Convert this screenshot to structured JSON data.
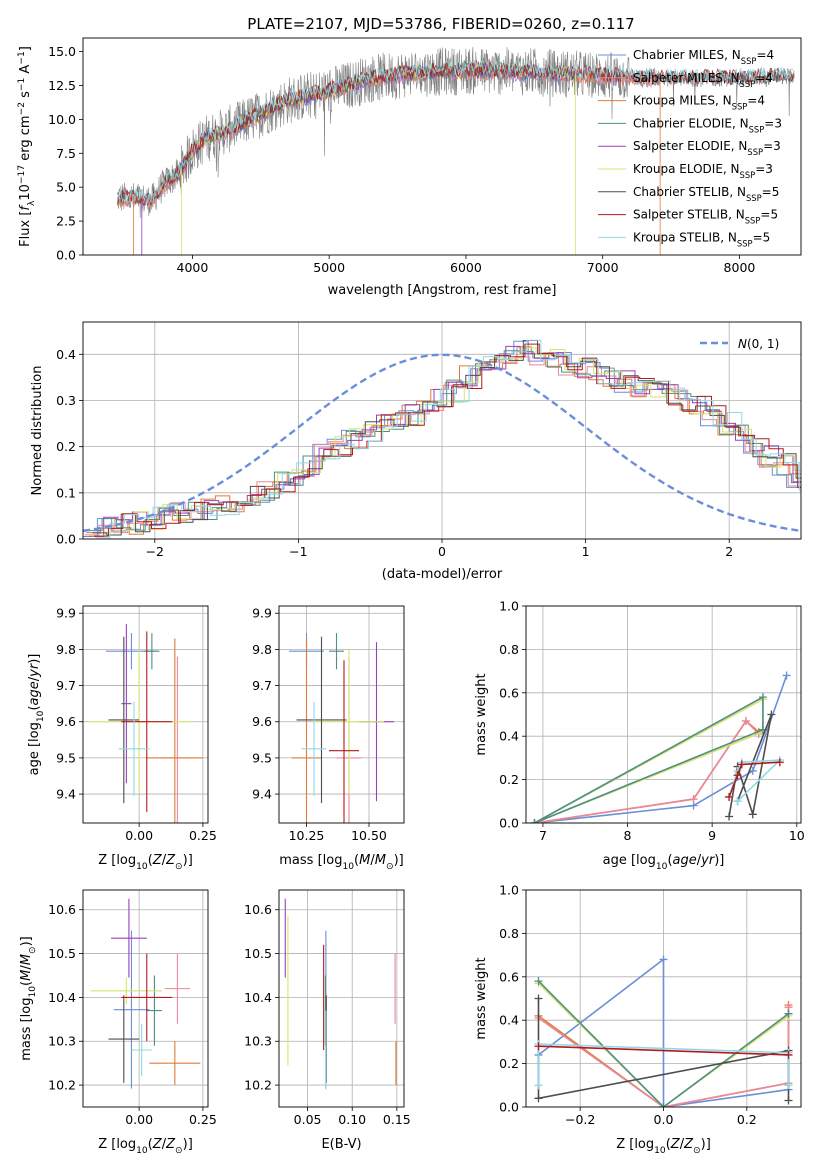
{
  "figure_title": "PLATE=2107, MJD=53786, FIBERID=0260, z=0.117",
  "colors": {
    "Chabrier MILES": "#6a8fd8",
    "Salpeter MILES": "#e8889b",
    "Kroupa MILES": "#e07b39",
    "Chabrier ELODIE": "#4d8f86",
    "Salpeter ELODIE": "#9a3fc0",
    "Kroupa ELODIE": "#d8e36b",
    "Chabrier STELIB": "#4d4d4d",
    "Salpeter STELIB": "#b51a1a",
    "Kroupa STELIB": "#8fd8e6",
    "normal_curve": "#6a8fd8",
    "data_spectrum": "#808080"
  },
  "chart_data": [
    {
      "id": "spectrum",
      "type": "line",
      "xlabel": "wavelength [Angstrom, rest frame]",
      "ylabel": "Flux [f_λ 10^-17 erg cm^-2 s^-1 A^-1]",
      "xlim": [
        3200,
        8450
      ],
      "ylim": [
        0,
        16
      ],
      "xticks": [
        4000,
        5000,
        6000,
        7000,
        8000
      ],
      "yticks": [
        0.0,
        2.5,
        5.0,
        7.5,
        10.0,
        12.5,
        15.0
      ],
      "grid": false,
      "legend_position": "right",
      "continuum": {
        "x": [
          3450,
          3600,
          3700,
          3800,
          3900,
          4000,
          4100,
          4300,
          4500,
          4700,
          5000,
          5300,
          5600,
          6000,
          6500,
          7000,
          7500,
          8000,
          8400
        ],
        "y": [
          4.2,
          4.2,
          4.0,
          5.3,
          6.0,
          7.7,
          8.6,
          9.4,
          10.4,
          11.4,
          12.1,
          13.0,
          13.4,
          13.6,
          13.5,
          13.2,
          13.0,
          13.0,
          13.2
        ]
      },
      "series": [
        {
          "name": "Chabrier MILES, N_SSP=4",
          "x_range": [
            3450,
            7400
          ]
        },
        {
          "name": "Salpeter MILES, N_SSP=4",
          "x_range": [
            3450,
            7400
          ]
        },
        {
          "name": "Kroupa MILES, N_SSP=4",
          "x_range": [
            3450,
            7400
          ]
        },
        {
          "name": "Chabrier ELODIE, N_SSP=3",
          "x_range": [
            3900,
            6800
          ]
        },
        {
          "name": "Salpeter ELODIE, N_SSP=3",
          "x_range": [
            3900,
            6800
          ]
        },
        {
          "name": "Kroupa ELODIE, N_SSP=3",
          "x_range": [
            3900,
            6800
          ]
        },
        {
          "name": "Chabrier STELIB, N_SSP=5",
          "x_range": [
            3450,
            8400
          ]
        },
        {
          "name": "Salpeter STELIB, N_SSP=5",
          "x_range": [
            3450,
            8400
          ]
        },
        {
          "name": "Kroupa STELIB, N_SSP=5",
          "x_range": [
            3450,
            8400
          ]
        }
      ],
      "legend_labels": [
        {
          "pre": "Chabrier MILES, N",
          "sub": "SSP",
          "post": "=4"
        },
        {
          "pre": "Salpeter MILES, N",
          "sub": "SSP",
          "post": "=4"
        },
        {
          "pre": "Kroupa MILES, N",
          "sub": "SSP",
          "post": "=4"
        },
        {
          "pre": "Chabrier ELODIE, N",
          "sub": "SSP",
          "post": "=3"
        },
        {
          "pre": "Salpeter ELODIE, N",
          "sub": "SSP",
          "post": "=3"
        },
        {
          "pre": "Kroupa ELODIE, N",
          "sub": "SSP",
          "post": "=3"
        },
        {
          "pre": "Chabrier STELIB, N",
          "sub": "SSP",
          "post": "=5"
        },
        {
          "pre": "Salpeter STELIB, N",
          "sub": "SSP",
          "post": "=5"
        },
        {
          "pre": "Kroupa STELIB, N",
          "sub": "SSP",
          "post": "=5"
        }
      ]
    },
    {
      "id": "residuals",
      "type": "line",
      "xlabel": "(data-model)/error",
      "ylabel": "Normed distribution",
      "xlim": [
        -2.5,
        2.5
      ],
      "ylim": [
        0,
        0.47
      ],
      "xticks": [
        -2,
        -1,
        0,
        1,
        2
      ],
      "yticks": [
        0.0,
        0.1,
        0.2,
        0.3,
        0.4
      ],
      "grid": true,
      "legend_position": "top-right",
      "legend_label": "N(0, 1)",
      "histogram_bin_width": 0.1,
      "histogram_base": [
        0.02,
        0.025,
        0.03,
        0.035,
        0.045,
        0.05,
        0.055,
        0.06,
        0.065,
        0.07,
        0.08,
        0.09,
        0.1,
        0.12,
        0.14,
        0.16,
        0.18,
        0.2,
        0.22,
        0.23,
        0.25,
        0.26,
        0.27,
        0.28,
        0.3,
        0.32,
        0.35,
        0.37,
        0.39,
        0.4,
        0.41,
        0.4,
        0.39,
        0.38,
        0.37,
        0.36,
        0.35,
        0.34,
        0.33,
        0.32,
        0.31,
        0.3,
        0.29,
        0.27,
        0.25,
        0.23,
        0.2,
        0.18,
        0.16,
        0.13,
        0.11,
        0.09,
        0.08,
        0.07,
        0.06,
        0.05,
        0.04,
        0.035,
        0.03,
        0.025,
        0.02
      ]
    },
    {
      "id": "z-vs-age",
      "type": "scatter",
      "xlabel": "Z [log10(Z/Z⊙)]",
      "ylabel": "age [log10(age/yr)]",
      "xlim": [
        -0.22,
        0.27
      ],
      "ylim": [
        9.32,
        9.92
      ],
      "xticks": [
        0.0,
        0.25
      ],
      "xtick_labels": [
        "0.00",
        "0.25"
      ],
      "yticks": [
        9.4,
        9.5,
        9.6,
        9.7,
        9.8,
        9.9
      ],
      "grid": true,
      "points": [
        {
          "series": "Chabrier MILES",
          "x": -0.03,
          "y": 9.795,
          "xerr": 0.1,
          "yerr": 0.05
        },
        {
          "series": "Salpeter MILES",
          "x": 0.15,
          "y": 9.5,
          "xerr": 0.07,
          "yerr": 0.28
        },
        {
          "series": "Kroupa MILES",
          "x": 0.14,
          "y": 9.5,
          "xerr": 0.11,
          "yerr": 0.33
        },
        {
          "series": "Chabrier ELODIE",
          "x": 0.05,
          "y": 9.795,
          "xerr": 0.03,
          "yerr": 0.05
        },
        {
          "series": "Salpeter ELODIE",
          "x": -0.05,
          "y": 9.65,
          "xerr": 0.02,
          "yerr": 0.22
        },
        {
          "series": "Kroupa ELODIE",
          "x": 0.0,
          "y": 9.6,
          "xerr": 0.2,
          "yerr": 0.2
        },
        {
          "series": "Chabrier STELIB",
          "x": -0.06,
          "y": 9.605,
          "xerr": 0.06,
          "yerr": 0.23
        },
        {
          "series": "Salpeter STELIB",
          "x": 0.03,
          "y": 9.6,
          "xerr": 0.1,
          "yerr": 0.25
        },
        {
          "series": "Kroupa STELIB",
          "x": -0.02,
          "y": 9.525,
          "xerr": 0.06,
          "yerr": 0.13
        }
      ]
    },
    {
      "id": "mass-vs-age",
      "type": "scatter",
      "xlabel": "mass [log10(M/M⊙)]",
      "ylabel": "",
      "xlim": [
        10.14,
        10.64
      ],
      "ylim": [
        9.32,
        9.92
      ],
      "xticks": [
        10.25,
        10.5
      ],
      "xtick_labels": [
        "10.25",
        "10.50"
      ],
      "yticks": [
        9.4,
        9.5,
        9.6,
        9.7,
        9.8,
        9.9
      ],
      "grid": true,
      "points": [
        {
          "series": "Chabrier MILES",
          "x": 10.25,
          "y": 9.795,
          "xerr": 0.07,
          "yerr": 0.05
        },
        {
          "series": "Salpeter MILES",
          "x": 10.42,
          "y": 9.5,
          "xerr": 0.05,
          "yerr": 0.28
        },
        {
          "series": "Kroupa MILES",
          "x": 10.25,
          "y": 9.5,
          "xerr": 0.06,
          "yerr": 0.33
        },
        {
          "series": "Chabrier ELODIE",
          "x": 10.37,
          "y": 9.795,
          "xerr": 0.03,
          "yerr": 0.05
        },
        {
          "series": "Salpeter ELODIE",
          "x": 10.53,
          "y": 9.6,
          "xerr": 0.07,
          "yerr": 0.22
        },
        {
          "series": "Kroupa ELODIE",
          "x": 10.42,
          "y": 9.6,
          "xerr": 0.14,
          "yerr": 0.2
        },
        {
          "series": "Chabrier STELIB",
          "x": 10.31,
          "y": 9.605,
          "xerr": 0.1,
          "yerr": 0.23
        },
        {
          "series": "Salpeter STELIB",
          "x": 10.4,
          "y": 9.52,
          "xerr": 0.06,
          "yerr": 0.25
        },
        {
          "series": "Kroupa STELIB",
          "x": 10.28,
          "y": 9.525,
          "xerr": 0.05,
          "yerr": 0.13
        }
      ]
    },
    {
      "id": "age-vs-weight",
      "type": "line",
      "xlabel": "age [log10(age/yr)]",
      "ylabel": "mass weight",
      "xlim": [
        6.8,
        10.05
      ],
      "ylim": [
        0,
        1.0
      ],
      "xticks": [
        7,
        8,
        9,
        10
      ],
      "yticks": [
        0.0,
        0.2,
        0.4,
        0.6,
        0.8,
        1.0
      ],
      "grid": true,
      "series": [
        {
          "name": "Chabrier MILES",
          "x": [
            6.9,
            8.78,
            9.48,
            9.88
          ],
          "y": [
            0.0,
            0.08,
            0.24,
            0.68
          ]
        },
        {
          "name": "Kroupa MILES",
          "x": [
            6.9,
            8.78,
            9.4,
            9.55
          ],
          "y": [
            0.0,
            0.11,
            0.47,
            0.42
          ]
        },
        {
          "name": "Salpeter MILES",
          "x": [
            6.9,
            8.78,
            9.4,
            9.55
          ],
          "y": [
            0.0,
            0.11,
            0.47,
            0.41
          ]
        },
        {
          "name": "Kroupa ELODIE",
          "x": [
            6.9,
            9.6,
            9.6,
            6.9
          ],
          "y": [
            0.0,
            0.57,
            0.42,
            0.0
          ]
        },
        {
          "name": "Chabrier ELODIE",
          "x": [
            6.9,
            9.6,
            9.6,
            6.9
          ],
          "y": [
            0.0,
            0.58,
            0.43,
            0.0
          ]
        },
        {
          "name": "Chabrier STELIB",
          "x": [
            9.2,
            9.3,
            9.48,
            9.7,
            9.3
          ],
          "y": [
            0.03,
            0.26,
            0.04,
            0.5,
            0.1
          ]
        },
        {
          "name": "Kroupa STELIB",
          "x": [
            9.2,
            9.3,
            9.35,
            9.8,
            9.3
          ],
          "y": [
            0.12,
            0.24,
            0.28,
            0.29,
            0.1
          ]
        },
        {
          "name": "Salpeter STELIB",
          "x": [
            9.2,
            9.3,
            9.35,
            9.8
          ],
          "y": [
            0.12,
            0.22,
            0.27,
            0.28
          ]
        }
      ]
    },
    {
      "id": "z-vs-mass",
      "type": "scatter",
      "xlabel": "Z [log10(Z/Z⊙)]",
      "ylabel": "mass [log10(M/M⊙)]",
      "xlim": [
        -0.22,
        0.27
      ],
      "ylim": [
        10.15,
        10.645
      ],
      "xticks": [
        0.0,
        0.25
      ],
      "xtick_labels": [
        "0.00",
        "0.25"
      ],
      "yticks": [
        10.2,
        10.3,
        10.4,
        10.5,
        10.6
      ],
      "grid": true,
      "points": [
        {
          "series": "Chabrier MILES",
          "x": -0.03,
          "y": 10.372,
          "xerr": 0.07,
          "yerr": 0.18
        },
        {
          "series": "Salpeter MILES",
          "x": 0.15,
          "y": 10.42,
          "xerr": 0.05,
          "yerr": 0.08
        },
        {
          "series": "Kroupa MILES",
          "x": 0.14,
          "y": 10.25,
          "xerr": 0.1,
          "yerr": 0.05
        },
        {
          "series": "Chabrier ELODIE",
          "x": 0.06,
          "y": 10.37,
          "xerr": 0.03,
          "yerr": 0.08
        },
        {
          "series": "Salpeter ELODIE",
          "x": -0.04,
          "y": 10.535,
          "xerr": 0.07,
          "yerr": 0.09
        },
        {
          "series": "Kroupa ELODIE",
          "x": -0.05,
          "y": 10.415,
          "xerr": 0.14,
          "yerr": 0.03
        },
        {
          "series": "Chabrier STELIB",
          "x": -0.06,
          "y": 10.305,
          "xerr": 0.06,
          "yerr": 0.1
        },
        {
          "series": "Salpeter STELIB",
          "x": 0.03,
          "y": 10.4,
          "xerr": 0.1,
          "yerr": 0.1
        },
        {
          "series": "Kroupa STELIB",
          "x": 0.01,
          "y": 10.28,
          "xerr": 0.04,
          "yerr": 0.06
        }
      ]
    },
    {
      "id": "ebv-vs-mass",
      "type": "scatter",
      "xlabel": "E(B-V)",
      "ylabel": "",
      "xlim": [
        0.018,
        0.158
      ],
      "ylim": [
        10.15,
        10.645
      ],
      "xticks": [
        0.05,
        0.1,
        0.15
      ],
      "xtick_labels": [
        "0.05",
        "0.10",
        "0.15"
      ],
      "yticks": [
        10.2,
        10.3,
        10.4,
        10.5,
        10.6
      ],
      "grid": true,
      "points": [
        {
          "series": "Chabrier MILES",
          "x": 0.0705,
          "y": 10.372,
          "xerr": 0,
          "yerr": 0.18
        },
        {
          "series": "Salpeter MILES",
          "x": 0.148,
          "y": 10.42,
          "xerr": 0,
          "yerr": 0.08
        },
        {
          "series": "Kroupa MILES",
          "x": 0.149,
          "y": 10.25,
          "xerr": 0,
          "yerr": 0.05
        },
        {
          "series": "Chabrier ELODIE",
          "x": 0.07,
          "y": 10.37,
          "xerr": 0,
          "yerr": 0.08
        },
        {
          "series": "Salpeter ELODIE",
          "x": 0.025,
          "y": 10.535,
          "xerr": 0,
          "yerr": 0.09
        },
        {
          "series": "Kroupa ELODIE",
          "x": 0.028,
          "y": 10.415,
          "xerr": 0,
          "yerr": 0.17
        },
        {
          "series": "Chabrier STELIB",
          "x": 0.071,
          "y": 10.305,
          "xerr": 0,
          "yerr": 0.1
        },
        {
          "series": "Salpeter STELIB",
          "x": 0.068,
          "y": 10.4,
          "xerr": 0,
          "yerr": 0.12
        },
        {
          "series": "Kroupa STELIB",
          "x": 0.0705,
          "y": 10.28,
          "xerr": 0,
          "yerr": 0.09
        }
      ]
    },
    {
      "id": "z-vs-weight",
      "type": "line",
      "xlabel": "Z [log10(Z/Z⊙)]",
      "ylabel": "mass weight",
      "xlim": [
        -0.33,
        0.33
      ],
      "ylim": [
        0,
        1.0
      ],
      "xticks": [
        -0.2,
        0.0,
        0.2
      ],
      "xtick_labels": [
        "−0.2",
        "0.0",
        "0.2"
      ],
      "yticks": [
        0.0,
        0.2,
        0.4,
        0.6,
        0.8,
        1.0
      ],
      "grid": true,
      "series": [
        {
          "name": "Chabrier MILES",
          "x": [
            -0.3,
            0.0,
            0.0,
            0.3
          ],
          "y": [
            0.24,
            0.68,
            0.0,
            0.08
          ]
        },
        {
          "name": "Kroupa MILES",
          "x": [
            -0.3,
            0.0,
            0.3,
            0.3
          ],
          "y": [
            0.42,
            0.0,
            0.11,
            0.47
          ]
        },
        {
          "name": "Salpeter MILES",
          "x": [
            -0.3,
            0.0,
            0.3,
            0.3
          ],
          "y": [
            0.41,
            0.0,
            0.11,
            0.46
          ]
        },
        {
          "name": "Kroupa ELODIE",
          "x": [
            -0.3,
            0.0,
            0.3
          ],
          "y": [
            0.57,
            0.0,
            0.42
          ]
        },
        {
          "name": "Chabrier ELODIE",
          "x": [
            -0.3,
            0.0,
            0.3
          ],
          "y": [
            0.58,
            0.0,
            0.43
          ]
        },
        {
          "name": "Chabrier STELIB",
          "x": [
            -0.3,
            -0.3,
            0.3,
            0.3
          ],
          "y": [
            0.5,
            0.04,
            0.26,
            0.03
          ]
        },
        {
          "name": "Kroupa STELIB",
          "x": [
            -0.3,
            -0.3,
            0.3,
            0.3
          ],
          "y": [
            0.1,
            0.29,
            0.25,
            0.1
          ]
        },
        {
          "name": "Salpeter STELIB",
          "x": [
            -0.3,
            0.3
          ],
          "y": [
            0.28,
            0.24
          ]
        }
      ]
    }
  ]
}
